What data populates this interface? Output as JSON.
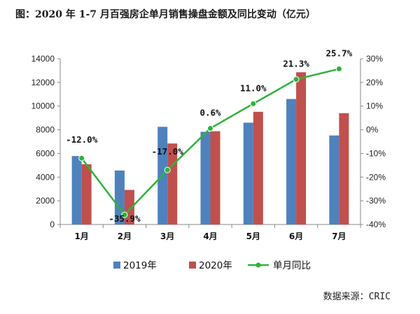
{
  "title": "图：2020 年 1-7 月百强房企单月销售操盘金额及同比变动（亿元）",
  "source": {
    "label": "数据来源：",
    "value": "CRIC"
  },
  "colors": {
    "series2019": "#4f81bd",
    "series2020": "#c0504d",
    "yoyLine": "#2db33b",
    "gridline": "#d9d9d9",
    "axis": "#888888"
  },
  "chart_data": {
    "type": "bar",
    "categories": [
      "1月",
      "2月",
      "3月",
      "4月",
      "5月",
      "6月",
      "7月"
    ],
    "series": [
      {
        "name": "2019年",
        "type": "bar",
        "axis": "left",
        "values": [
          5780,
          4560,
          8250,
          7830,
          8600,
          10600,
          7520
        ]
      },
      {
        "name": "2020年",
        "type": "bar",
        "axis": "left",
        "values": [
          5090,
          2920,
          6840,
          7880,
          9520,
          12860,
          9400
        ]
      },
      {
        "name": "单月同比",
        "type": "line",
        "axis": "right",
        "values": [
          -12.0,
          -35.9,
          -17.0,
          0.6,
          11.0,
          21.3,
          25.7
        ]
      }
    ],
    "data_labels": [
      "-12.0%",
      "-35.9%",
      "-17.0%",
      "0.6%",
      "11.0%",
      "21.3%",
      "25.7%"
    ],
    "y_left": {
      "ylim": [
        0,
        14000
      ],
      "ticks": [
        "0",
        "2000",
        "4000",
        "6000",
        "8000",
        "10000",
        "12000",
        "14000"
      ]
    },
    "y_right": {
      "ylim": [
        -40,
        30
      ],
      "ticks": [
        "-40%",
        "-30%",
        "-20%",
        "-10%",
        "0%",
        "10%",
        "20%",
        "30%"
      ]
    },
    "legend": {
      "position": "bottom"
    },
    "grid": false
  }
}
